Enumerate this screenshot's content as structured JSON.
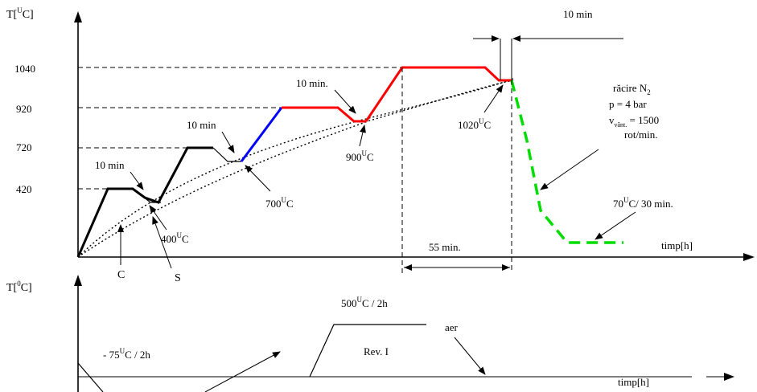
{
  "top_chart": {
    "y_axis_label": "T[",
    "y_axis_label_sup": "U",
    "y_axis_label_end": "C]",
    "x_axis_label": "timp[h]",
    "y_ticks": [
      "1040",
      "920",
      "720",
      "420"
    ],
    "annotations": {
      "ten_min_1": "10 min",
      "ten_min_2": "10 min",
      "ten_min_3": "10 min.",
      "ten_min_top": "10 min",
      "t400": "400",
      "t700": "700",
      "t900": "900",
      "t1020": "1020",
      "deg_sup": "U",
      "deg_c": "C",
      "fifty_five": "55 min.",
      "c_label": "C",
      "s_label": "S",
      "cool_1": "răcire N",
      "cool_1_sub": "2",
      "cool_2": "p = 4 bar",
      "cool_3": "v",
      "cool_3_sub": "vânt.",
      "cool_3_end": " = 1500",
      "cool_4": "rot/min.",
      "seventy": "70",
      "seventy_end": "C/ 30 min."
    },
    "colors": {
      "stage1": "#000000",
      "stage2_heat": "#0000ff",
      "stage3": "#ff0000",
      "cooling": "#00dd00"
    }
  },
  "bottom_chart": {
    "y_axis_label": "T[",
    "y_axis_label_sup": "0",
    "y_axis_label_end": "C]",
    "x_axis_label": "timp[h]",
    "annotations": {
      "subzero_pre": "- 75",
      "subzero_sup": "U",
      "subzero_end": "C / 2h",
      "revenire_pre": "500",
      "revenire_sup": "U",
      "revenire_end": "C  / 2h",
      "rev": "Rev. I",
      "aer": "aer"
    }
  }
}
